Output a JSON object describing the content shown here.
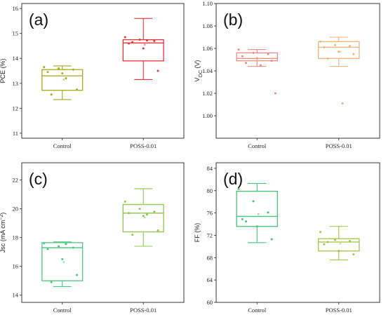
{
  "chart_data": [
    {
      "type": "box",
      "panel_label": "(a)",
      "ylabel": "PCE (%)",
      "ylim": [
        10.8,
        16.2
      ],
      "yticks": [
        11,
        12,
        13,
        14,
        15,
        16
      ],
      "categories": [
        "Control",
        "POSS-0.01"
      ],
      "colors": [
        "#a8a81a",
        "#e53434"
      ],
      "boxes": [
        {
          "min": 12.35,
          "q1": 12.72,
          "median": 13.3,
          "q3": 13.55,
          "max": 13.7,
          "mean": 13.15,
          "points": [
            13.65,
            13.6,
            13.55,
            13.45,
            13.4,
            12.75,
            12.55,
            13.2
          ]
        },
        {
          "min": 13.15,
          "q1": 13.9,
          "median": 14.62,
          "q3": 14.75,
          "max": 15.6,
          "mean": 14.55,
          "points": [
            14.85,
            14.75,
            14.7,
            14.6,
            14.4,
            13.5,
            14.65,
            14.72
          ]
        }
      ]
    },
    {
      "type": "box",
      "panel_label": "(b)",
      "ylabel": "VOC (V)",
      "ylabel_main": "V",
      "ylabel_sub": "OC",
      "ylabel_unit": " (V)",
      "ylim": [
        0.98,
        1.1
      ],
      "yticks": [
        1.0,
        1.02,
        1.04,
        1.06,
        1.08,
        1.1
      ],
      "ytick_labels": [
        "1.00",
        "1.02",
        "1.04",
        "1.06",
        "1.08",
        "1.10"
      ],
      "categories": [
        "Control",
        "POSS-0.01"
      ],
      "colors": [
        "#ef8a84",
        "#f4b27a"
      ],
      "boxes": [
        {
          "min": 1.044,
          "q1": 1.049,
          "median": 1.051,
          "q3": 1.056,
          "max": 1.059,
          "mean": 1.051,
          "points": [
            1.059,
            1.056,
            1.055,
            1.053,
            1.051,
            1.049,
            1.047,
            1.045,
            1.02
          ]
        },
        {
          "min": 1.044,
          "q1": 1.051,
          "median": 1.061,
          "q3": 1.066,
          "max": 1.07,
          "mean": 1.057,
          "points": [
            1.066,
            1.063,
            1.062,
            1.061,
            1.057,
            1.055,
            1.051,
            1.011
          ]
        }
      ]
    },
    {
      "type": "box",
      "panel_label": "(c)",
      "ylabel": "Jsc (mA cm−2)",
      "ylabel_main": "Jsc (mA cm",
      "ylabel_sup": "−2",
      "ylabel_close": ")",
      "ylim": [
        13.5,
        23.2
      ],
      "yticks": [
        14,
        16,
        18,
        20,
        22
      ],
      "categories": [
        "Control",
        "POSS-0.01"
      ],
      "colors": [
        "#49c97c",
        "#8ec84a"
      ],
      "boxes": [
        {
          "min": 14.6,
          "q1": 15.0,
          "median": 17.3,
          "q3": 17.65,
          "max": 17.7,
          "mean": 16.3,
          "points": [
            17.6,
            17.4,
            17.3,
            17.2,
            16.5,
            15.4,
            14.9,
            17.55
          ]
        },
        {
          "min": 17.4,
          "q1": 18.4,
          "median": 19.7,
          "q3": 20.3,
          "max": 21.4,
          "mean": 19.4,
          "points": [
            20.5,
            20.0,
            19.8,
            19.7,
            19.5,
            18.5,
            18.2,
            19.6
          ]
        }
      ]
    },
    {
      "type": "box",
      "panel_label": "(d)",
      "ylabel": "FF (%)",
      "ylim": [
        60,
        85
      ],
      "yticks": [
        60,
        64,
        68,
        72,
        76,
        80,
        84
      ],
      "categories": [
        "Control",
        "POSS-0.01"
      ],
      "colors": [
        "#45c47a",
        "#9cc842"
      ],
      "boxes": [
        {
          "min": 70.7,
          "q1": 73.6,
          "median": 75.4,
          "q3": 79.9,
          "max": 81.3,
          "mean": 75.8,
          "points": [
            80.3,
            78.1,
            76.1,
            74.9,
            73.6,
            71.3,
            74.5
          ]
        },
        {
          "min": 67.6,
          "q1": 69.2,
          "median": 70.8,
          "q3": 71.4,
          "max": 73.6,
          "mean": 70.5,
          "points": [
            72.6,
            71.2,
            71.0,
            70.4,
            69.2,
            68.6,
            70.8
          ]
        }
      ]
    }
  ]
}
